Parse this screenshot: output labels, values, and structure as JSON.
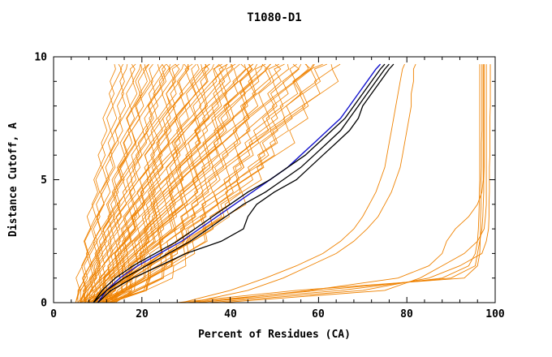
{
  "chart_data": {
    "type": "line",
    "title": "T1080-D1",
    "xlabel": "Percent of Residues (CA)",
    "ylabel": "Distance Cutoff, A",
    "xlim": [
      0,
      100
    ],
    "ylim": [
      0,
      10
    ],
    "grid": false,
    "legend": "none",
    "x_ticks": [
      0,
      20,
      40,
      60,
      80,
      100
    ],
    "y_ticks": [
      0,
      5,
      10
    ],
    "x_tick_labels": [
      "0",
      "20",
      "40",
      "60",
      "80",
      "100"
    ],
    "y_tick_labels": [
      "10",
      "5",
      "0"
    ],
    "x_minor_step": 4,
    "y_minor_step": 1,
    "colors": {
      "ensemble": "#ef8200",
      "outlier": "#ef8200",
      "reference": "#1414cd",
      "highlight": "#000000",
      "axis": "#000000",
      "background": "#ffffff"
    },
    "y_grid": [
      0,
      0.5,
      1,
      1.5,
      2,
      2.5,
      3,
      3.5,
      4,
      4.5,
      5,
      5.5,
      6,
      6.5,
      7,
      7.5,
      8,
      8.5,
      9,
      9.5,
      9.7
    ],
    "series": [
      {
        "name": "model-ensemble",
        "color": "#ef8200",
        "width": 0.8,
        "style": "parametric",
        "curves": [
          [
            5,
            14,
            0.85
          ],
          [
            5.5,
            16,
            0.8
          ],
          [
            6,
            18,
            0.9
          ],
          [
            6,
            20,
            0.75
          ],
          [
            6.5,
            22,
            0.85
          ],
          [
            7,
            24,
            0.8
          ],
          [
            7,
            26,
            0.9
          ],
          [
            7.5,
            28,
            0.7
          ],
          [
            8,
            30,
            0.85
          ],
          [
            8,
            32,
            0.75
          ],
          [
            8.5,
            34,
            0.8
          ],
          [
            9,
            36,
            0.9
          ],
          [
            9,
            38,
            0.7
          ],
          [
            9.5,
            40,
            0.8
          ],
          [
            10,
            42,
            0.85
          ],
          [
            10,
            44,
            0.75
          ],
          [
            10.5,
            46,
            0.8
          ],
          [
            11,
            48,
            0.7
          ],
          [
            11,
            50,
            0.85
          ],
          [
            11.5,
            52,
            0.75
          ],
          [
            12,
            54,
            0.8
          ],
          [
            12,
            56,
            0.7
          ],
          [
            12.5,
            58,
            0.75
          ],
          [
            13,
            60,
            0.8
          ],
          [
            13,
            62,
            0.7
          ],
          [
            13.5,
            64,
            0.75
          ],
          [
            14,
            66,
            0.7
          ],
          [
            5,
            15,
            1.0
          ],
          [
            6,
            17,
            0.95
          ],
          [
            6,
            19,
            1.05
          ],
          [
            7,
            21,
            0.95
          ],
          [
            7,
            23,
            1.0
          ],
          [
            8,
            25,
            0.9
          ],
          [
            8,
            27,
            1.0
          ],
          [
            9,
            29,
            0.95
          ],
          [
            9,
            31,
            0.9
          ],
          [
            10,
            33,
            1.0
          ],
          [
            10,
            35,
            0.95
          ],
          [
            11,
            37,
            0.9
          ],
          [
            11,
            39,
            1.0
          ],
          [
            12,
            41,
            0.95
          ],
          [
            12,
            43,
            0.9
          ],
          [
            13,
            45,
            0.95
          ],
          [
            13,
            47,
            0.9
          ],
          [
            14,
            49,
            0.95
          ],
          [
            5.5,
            20,
            0.65
          ],
          [
            6.5,
            25,
            0.6
          ],
          [
            7.5,
            30,
            0.65
          ],
          [
            8.5,
            35,
            0.6
          ],
          [
            9.5,
            40,
            0.65
          ],
          [
            10.5,
            45,
            0.6
          ],
          [
            11.5,
            50,
            0.65
          ],
          [
            12.5,
            55,
            0.6
          ],
          [
            13.5,
            60,
            0.65
          ],
          [
            6,
            28,
            0.55
          ],
          [
            7,
            33,
            0.55
          ],
          [
            8,
            38,
            0.55
          ],
          [
            9,
            43,
            0.55
          ],
          [
            10,
            48,
            0.55
          ],
          [
            11,
            53,
            0.55
          ],
          [
            12,
            58,
            0.55
          ],
          [
            5,
            22,
            0.7
          ],
          [
            6,
            26,
            0.72
          ],
          [
            7,
            31,
            0.68
          ],
          [
            8,
            36,
            0.7
          ],
          [
            9,
            41,
            0.68
          ],
          [
            10,
            46,
            0.72
          ],
          [
            11,
            51,
            0.68
          ],
          [
            12,
            57,
            0.7
          ],
          [
            13,
            63,
            0.72
          ]
        ]
      },
      {
        "name": "right-outlier-models",
        "color": "#ef8200",
        "width": 0.9,
        "style": "explicit",
        "curves_xs": [
          [
            28,
            55,
            93,
            96,
            96.5,
            96.6,
            96.7,
            96.7,
            96.8,
            96.8,
            96.8,
            96.9,
            96.9,
            96.9,
            97,
            97,
            97,
            97,
            97,
            97,
            97
          ],
          [
            30,
            60,
            90,
            95.5,
            96,
            96.5,
            97,
            97.2,
            97.3,
            97.4,
            97.4,
            97.5,
            97.5,
            97.5,
            97.5,
            97.5,
            97.5,
            97.5,
            97.5,
            97.5,
            97.5
          ],
          [
            32,
            65,
            88,
            94,
            95.5,
            96,
            96.2,
            96.3,
            96.4,
            96.4,
            96.5,
            96.5,
            96.5,
            96.5,
            96.5,
            96.5,
            96.5,
            96.5,
            96.5,
            96.5,
            96.5
          ],
          [
            35,
            70,
            85,
            92,
            97,
            98,
            98.5,
            98.6,
            98.6,
            98.7,
            98.7,
            98.7,
            98.8,
            98.8,
            98.8,
            98.8,
            98.9,
            98.9,
            98.9,
            98.9,
            98.9
          ],
          [
            38,
            75,
            83,
            88,
            93,
            96,
            97.5,
            97.8,
            98,
            98,
            98,
            98,
            98,
            98,
            98,
            98,
            98,
            98,
            98,
            98,
            98
          ],
          [
            33,
            58,
            78,
            85,
            88,
            89,
            91,
            94,
            96,
            97,
            97.3,
            97.3,
            97.3,
            97.3,
            97.3,
            97.3,
            97.3,
            97.3,
            97.3,
            97.3,
            97.3
          ]
        ]
      },
      {
        "name": "mid-outlier-models",
        "color": "#ef8200",
        "width": 0.9,
        "style": "explicit",
        "curves_xs": [
          [
            29,
            40,
            48,
            55,
            61,
            65,
            68,
            70,
            71.5,
            73,
            74,
            75,
            75.5,
            76,
            76.5,
            77,
            77.5,
            78,
            78.5,
            79,
            79.5
          ],
          [
            31,
            44,
            52,
            58,
            64,
            68,
            71,
            73.5,
            75,
            76.5,
            77.5,
            78.5,
            79,
            79.5,
            80,
            80.5,
            81,
            81,
            81.5,
            81.5,
            82
          ]
        ]
      },
      {
        "name": "reference-model",
        "color": "#1414cd",
        "width": 1.4,
        "style": "explicit",
        "curves_xs": [
          [
            10,
            12,
            15,
            19,
            24,
            29,
            33,
            37,
            41,
            45,
            49,
            53,
            56,
            59,
            62,
            65,
            67,
            69,
            71,
            73,
            74
          ]
        ]
      },
      {
        "name": "highlighted-models",
        "color": "#000000",
        "width": 1.3,
        "style": "explicit",
        "curves_xs": [
          [
            9,
            12,
            16,
            21,
            26,
            31,
            35,
            39,
            43,
            48,
            52,
            56,
            59,
            62,
            65,
            67,
            69,
            71,
            73,
            75,
            76
          ],
          [
            10,
            13,
            18,
            24,
            30,
            38,
            43,
            44,
            46,
            50,
            55,
            58,
            61,
            64,
            67,
            69,
            70,
            72,
            74,
            76,
            77
          ],
          [
            9,
            11,
            14,
            18,
            23,
            28,
            32,
            36,
            40,
            44,
            49,
            53,
            57,
            60,
            63,
            66,
            68,
            70,
            72,
            74,
            75
          ]
        ]
      }
    ]
  }
}
